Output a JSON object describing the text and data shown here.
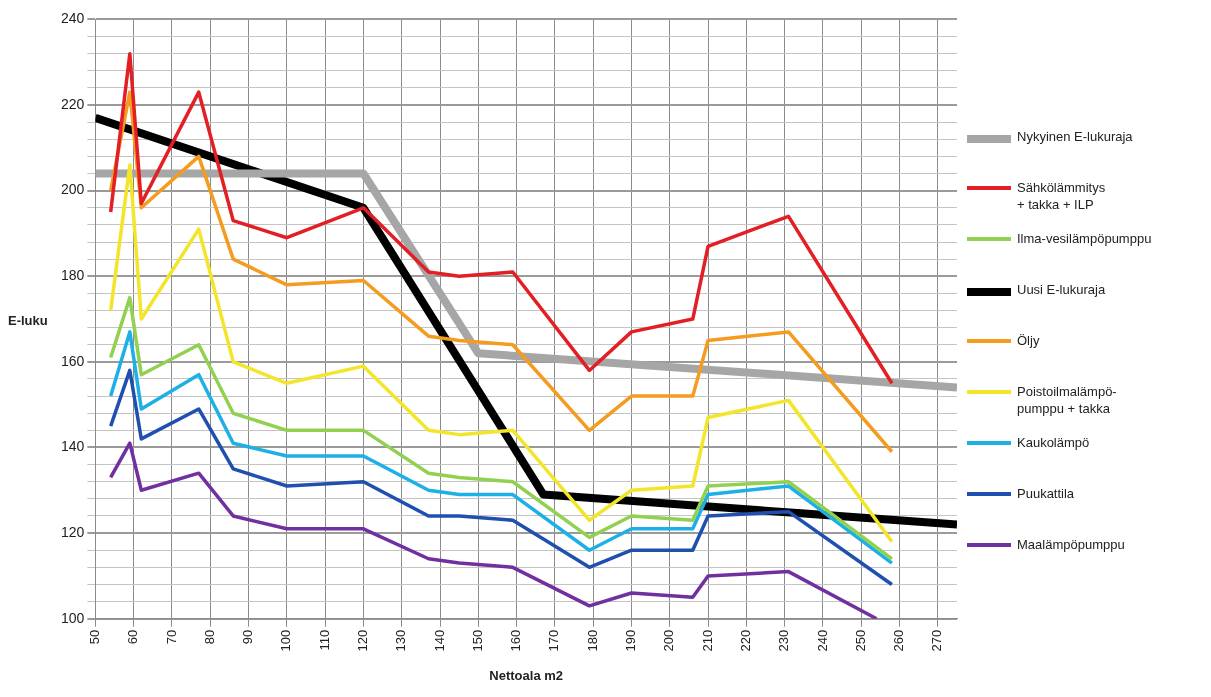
{
  "chart_data": {
    "type": "line",
    "xlabel": "Nettoala m2",
    "ylabel": "E-luku",
    "xlim": [
      50,
      275
    ],
    "xticks": [
      50,
      60,
      70,
      80,
      90,
      100,
      110,
      120,
      130,
      140,
      150,
      160,
      170,
      180,
      190,
      200,
      210,
      220,
      230,
      240,
      250,
      260,
      270
    ],
    "ylim": [
      100,
      240
    ],
    "yticks": [
      100,
      {
        "value": 104,
        "label": null
      },
      {
        "value": 108,
        "label": null
      },
      {
        "value": 112,
        "label": null
      },
      {
        "value": 116,
        "label": null
      },
      120,
      {
        "value": 124,
        "label": null
      },
      {
        "value": 128,
        "label": null
      },
      {
        "value": 132,
        "label": null
      },
      {
        "value": 136,
        "label": null
      },
      140,
      {
        "value": 144,
        "label": null
      },
      {
        "value": 148,
        "label": null
      },
      {
        "value": 152,
        "label": null
      },
      {
        "value": 156,
        "label": null
      },
      160,
      {
        "value": 164,
        "label": null
      },
      {
        "value": 168,
        "label": null
      },
      {
        "value": 172,
        "label": null
      },
      {
        "value": 176,
        "label": null
      },
      180,
      {
        "value": 184,
        "label": null
      },
      {
        "value": 188,
        "label": null
      },
      {
        "value": 192,
        "label": null
      },
      {
        "value": 196,
        "label": null
      },
      200,
      {
        "value": 204,
        "label": null
      },
      {
        "value": 208,
        "label": null
      },
      {
        "value": 212,
        "label": null
      },
      {
        "value": 216,
        "label": null
      },
      220,
      {
        "value": 224,
        "label": null
      },
      {
        "value": 228,
        "label": null
      },
      {
        "value": 232,
        "label": null
      },
      {
        "value": 236,
        "label": null
      },
      240
    ],
    "grid": true,
    "legend": "right",
    "marker": "none",
    "x": [
      54,
      59,
      62,
      77,
      86,
      100,
      120,
      137,
      145,
      159,
      179,
      190,
      206,
      210,
      231,
      258
    ],
    "series": [
      {
        "name": "Nykyinen E-lukuraja",
        "color": "#a6a6a6",
        "x": [
          50,
          120,
          150,
          275
        ],
        "values": [
          204,
          204,
          162,
          154
        ]
      },
      {
        "name": "Sähkölämmitys\n+ takka + ILP",
        "color": "#e31e24",
        "values": [
          195,
          232,
          197,
          223,
          193,
          189,
          196,
          181,
          180,
          181,
          158,
          167,
          170,
          187,
          194,
          155
        ]
      },
      {
        "name": "Ilma-vesilämpöpumppu",
        "color": "#92d050",
        "values": [
          161,
          175,
          157,
          164,
          148,
          144,
          144,
          134,
          133,
          132,
          119,
          124,
          123,
          131,
          132,
          114
        ]
      },
      {
        "name": "Uusi E-lukuraja",
        "color": "#000000",
        "x": [
          50,
          120,
          167,
          275
        ],
        "values": [
          217,
          196,
          129,
          122
        ]
      },
      {
        "name": "Öljy",
        "color": "#f39c1f",
        "values": [
          200,
          223,
          196,
          208,
          184,
          178,
          179,
          166,
          165,
          164,
          144,
          152,
          152,
          165,
          167,
          139
        ]
      },
      {
        "name": "Poistoilmalämpö-\npumppu + takka",
        "color": "#f2e52a",
        "values": [
          172,
          206,
          170,
          191,
          160,
          155,
          159,
          144,
          143,
          144,
          123,
          130,
          131,
          147,
          151,
          118
        ]
      },
      {
        "name": "Kaukolämpö",
        "color": "#1cb0e6",
        "values": [
          152,
          167,
          149,
          157,
          141,
          138,
          138,
          130,
          129,
          129,
          116,
          121,
          121,
          129,
          131,
          113
        ]
      },
      {
        "name": "Puukattila",
        "color": "#1f4faf",
        "values": [
          145,
          158,
          142,
          149,
          135,
          131,
          132,
          124,
          124,
          123,
          112,
          116,
          116,
          124,
          125,
          108
        ]
      },
      {
        "name": "Maalämpöpumppu",
        "color": "#7030a0",
        "x": [
          54,
          59,
          62,
          77,
          86,
          100,
          120,
          137,
          145,
          159,
          179,
          190,
          206,
          210,
          231,
          254
        ],
        "values": [
          133,
          141,
          130,
          134,
          124,
          121,
          121,
          114,
          113,
          112,
          103,
          106,
          105,
          110,
          111,
          100
        ]
      }
    ]
  }
}
